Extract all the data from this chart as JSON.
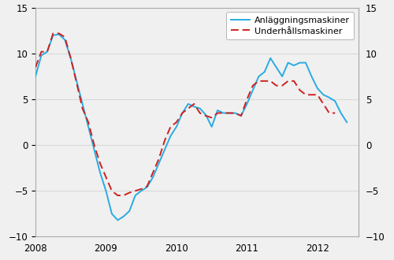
{
  "anlaggning_label": "Anläggningsmaskiner",
  "underhall_label": "Underhållsmaskiner",
  "anlaggning_color": "#29abe2",
  "underhall_color": "#cc2222",
  "ylim": [
    -10,
    15
  ],
  "yticks": [
    -10,
    -5,
    0,
    5,
    10,
    15
  ],
  "xlim_left": 2008.0,
  "xlim_right": 2012.583,
  "xticks": [
    2008,
    2009,
    2010,
    2011,
    2012
  ],
  "xticklabels": [
    "2008",
    "2009",
    "2010",
    "2011",
    "2012"
  ],
  "background_color": "#f0f0f0",
  "plot_bg_color": "#f0f0f0",
  "grid_color": "#d8d8d8",
  "spine_color": "#aaaaaa",
  "anlaggning": [
    7.5,
    9.8,
    10.2,
    12.0,
    12.1,
    11.5,
    9.5,
    7.0,
    4.5,
    2.0,
    -0.5,
    -3.0,
    -5.0,
    -7.5,
    -8.2,
    -7.8,
    -7.2,
    -5.5,
    -5.0,
    -4.6,
    -3.5,
    -2.0,
    -0.5,
    1.0,
    2.0,
    3.5,
    4.5,
    4.2,
    4.0,
    3.3,
    2.0,
    3.8,
    3.5,
    3.5,
    3.5,
    3.2,
    4.5,
    6.0,
    7.5,
    8.0,
    9.5,
    8.5,
    7.5,
    9.0,
    8.7,
    9.0,
    9.0,
    7.5,
    6.2,
    5.5,
    5.2,
    4.8,
    3.5,
    2.5
  ],
  "underhall": [
    8.5,
    10.2,
    10.2,
    12.2,
    12.2,
    11.8,
    9.5,
    6.8,
    4.0,
    2.5,
    0.0,
    -2.0,
    -3.5,
    -5.0,
    -5.5,
    -5.5,
    -5.2,
    -5.0,
    -4.8,
    -4.5,
    -3.0,
    -1.5,
    0.5,
    2.0,
    2.5,
    3.5,
    4.0,
    4.5,
    3.5,
    3.2,
    3.0,
    3.5,
    3.5,
    3.5,
    3.5,
    3.2,
    5.0,
    6.5,
    7.0,
    7.0,
    7.0,
    6.5,
    6.5,
    7.0,
    7.0,
    6.0,
    5.5,
    5.5,
    5.5,
    4.5,
    3.5,
    3.5
  ]
}
